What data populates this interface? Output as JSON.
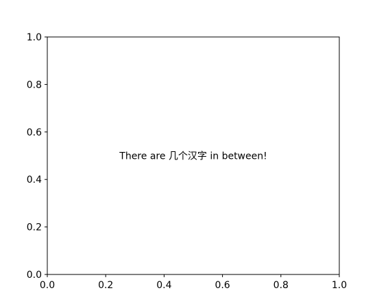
{
  "chart_data": {
    "type": "scatter",
    "title": "",
    "xlabel": "",
    "ylabel": "",
    "xlim": [
      0.0,
      1.0
    ],
    "ylim": [
      0.0,
      1.0
    ],
    "x_ticks": [
      "0.0",
      "0.2",
      "0.4",
      "0.6",
      "0.8",
      "1.0"
    ],
    "y_ticks": [
      "0.0",
      "0.2",
      "0.4",
      "0.6",
      "0.8",
      "1.0"
    ],
    "grid": false,
    "series": [],
    "annotations": [
      {
        "text": "There are 几个汉字 in between!",
        "x": 0.5,
        "y": 0.5
      }
    ]
  }
}
